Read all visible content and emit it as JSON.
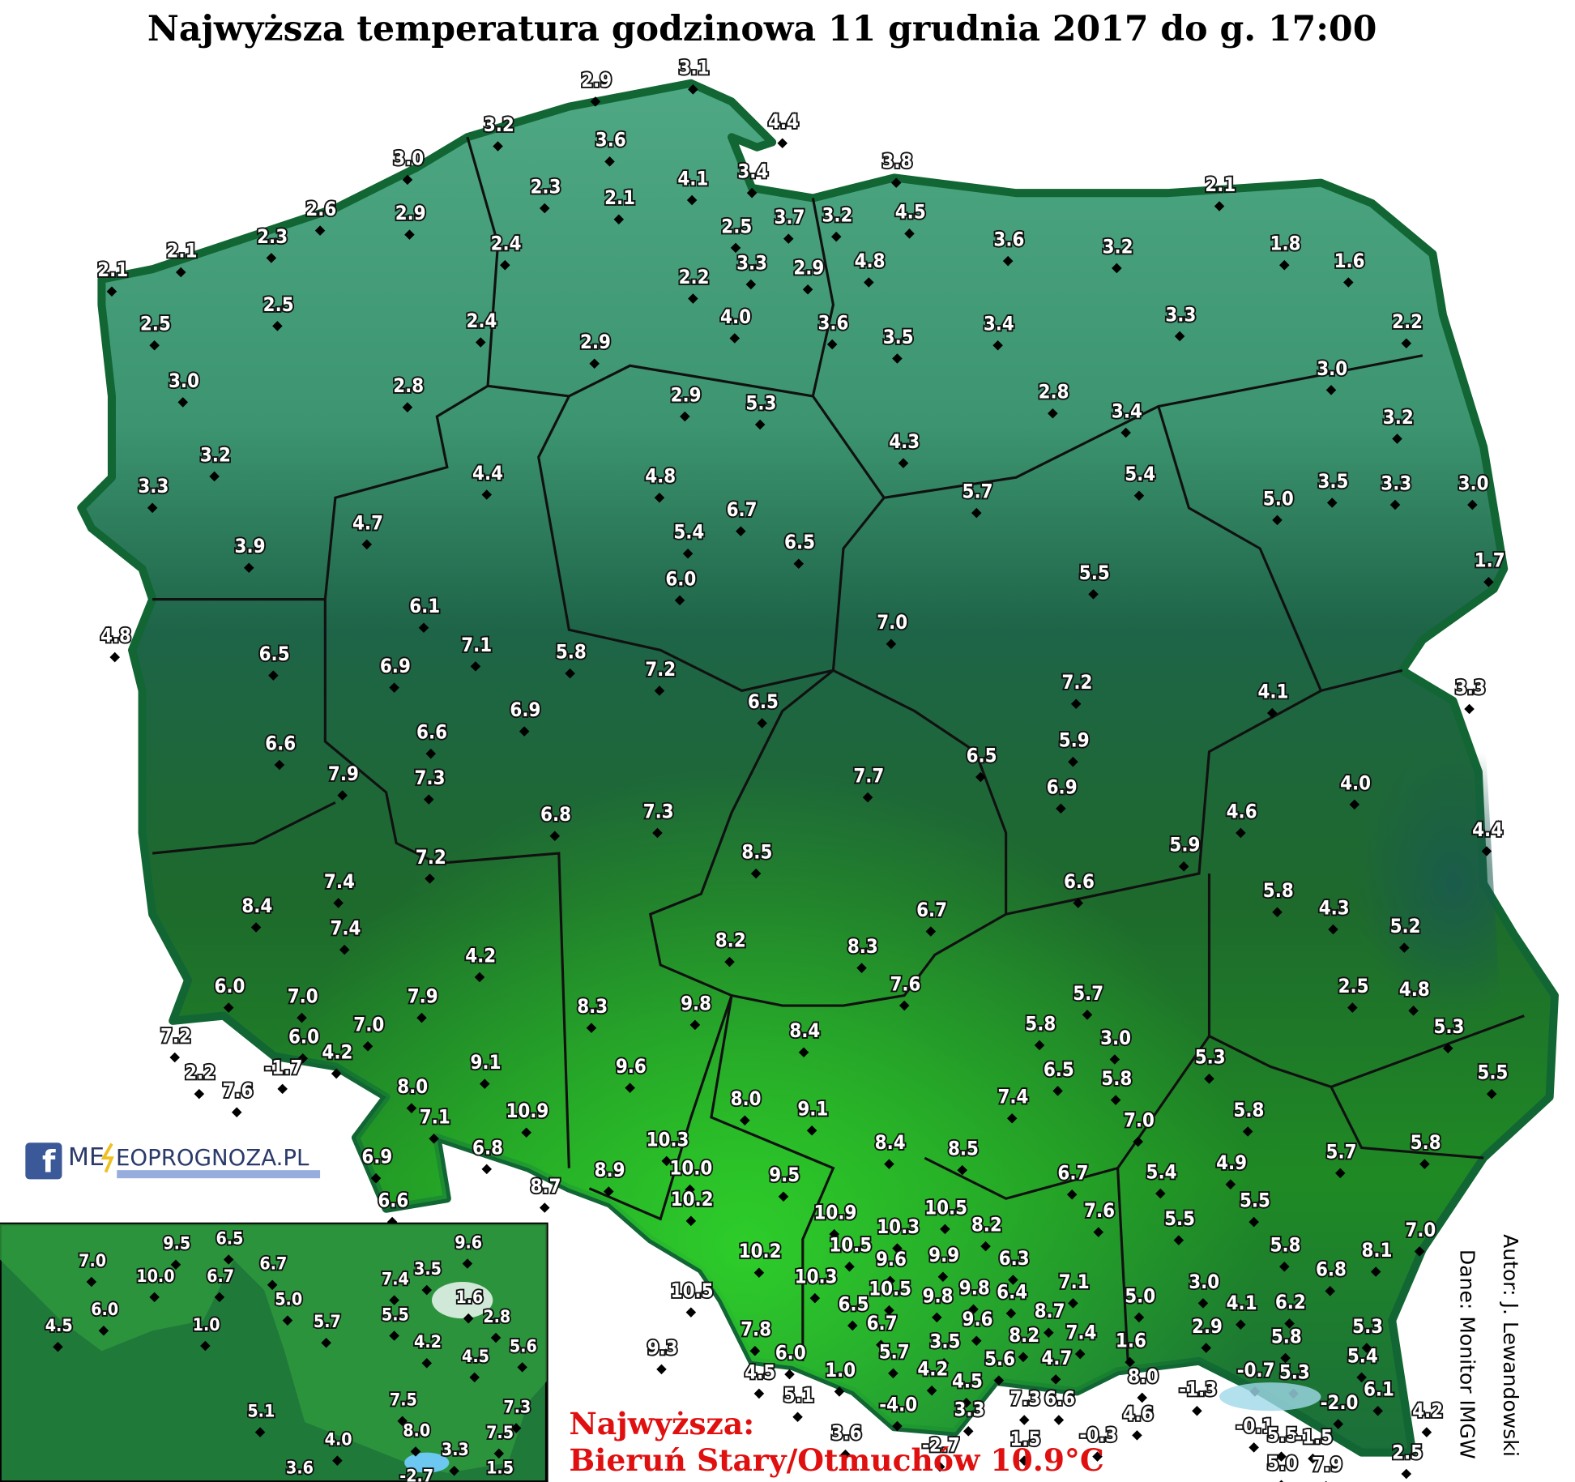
{
  "title": "Najwyższa temperatura godzinowa 11 grudnia 2017 do g. 17:00",
  "stations": [
    "2.9",
    "3.1",
    "4.4",
    "3.2",
    "3.6",
    "3.0",
    "3.4",
    "3.8",
    "4.1",
    "2.3",
    "2.1",
    "2.6",
    "2.9",
    "2.3",
    "2.5",
    "3.7",
    "3.2",
    "4.5",
    "2.1",
    "2.1",
    "2.1",
    "2.4",
    "3.6",
    "3.2",
    "1.8",
    "1.6",
    "3.3",
    "2.9",
    "4.8",
    "2.2",
    "2.5",
    "2.5",
    "2.4",
    "4.0",
    "3.6",
    "3.5",
    "3.4",
    "3.3",
    "2.2",
    "2.9",
    "3.0",
    "2.8",
    "2.9",
    "5.3",
    "2.8",
    "3.0",
    "3.4",
    "3.2",
    "4.3",
    "3.2",
    "4.4",
    "4.8",
    "5.4",
    "5.7",
    "3.3",
    "5.0",
    "3.5",
    "3.3",
    "3.0",
    "6.7",
    "5.4",
    "6.5",
    "4.7",
    "3.9",
    "1.7",
    "5.5",
    "6.0",
    "4.8",
    "6.1",
    "7.1",
    "5.8",
    "7.0",
    "6.5",
    "6.9",
    "7.2",
    "7.2",
    "4.1",
    "3.3",
    "6.9",
    "6.5",
    "6.6",
    "6.6",
    "6.5",
    "5.9",
    "4.0",
    "7.9",
    "7.3",
    "6.8",
    "7.3",
    "7.7",
    "6.9",
    "4.6",
    "4.4",
    "7.2",
    "8.5",
    "5.9",
    "7.4",
    "6.6",
    "5.8",
    "4.3",
    "8.4",
    "6.7",
    "5.2",
    "7.4",
    "8.2",
    "8.3",
    "4.2",
    "7.6",
    "2.5",
    "4.8",
    "6.0",
    "7.0",
    "7.9",
    "5.7",
    "9.8",
    "8.3",
    "5.8",
    "8.4",
    "3.0",
    "5.3",
    "7.2",
    "7.0",
    "6.0",
    "4.2",
    "9.1",
    "9.6",
    "5.3",
    "5.5",
    "2.2",
    "7.6",
    "-1.7",
    "6.5",
    "5.8",
    "8.0",
    "8.0",
    "9.1",
    "7.4",
    "5.8",
    "10.9",
    "7.1",
    "7.0",
    "6.9",
    "6.8",
    "10.3",
    "8.4",
    "8.5",
    "5.7",
    "5.8",
    "10.0",
    "6.7",
    "5.4",
    "4.9",
    "8.7",
    "8.9",
    "9.5",
    "6.6",
    "10.2",
    "5.5",
    "7.6",
    "10.9",
    "10.5",
    "10.3",
    "8.2",
    "5.5",
    "7.0",
    "10.2",
    "10.5",
    "9.6",
    "9.9",
    "6.3",
    "5.8",
    "8.1",
    "10.3",
    "7.1",
    "6.8",
    "10.5",
    "10.5",
    "9.8",
    "6.4",
    "9.8",
    "5.0",
    "3.0",
    "4.1",
    "6.2",
    "6.5",
    "8.7",
    "9.6",
    "6.7",
    "2.9",
    "5.8",
    "5.3",
    "9.3",
    "7.8",
    "7.4",
    "8.2",
    "1.6",
    "3.5",
    "5.7",
    "6.0",
    "4.7",
    "5.6",
    "5.4",
    "4.2",
    "4.5",
    "1.0",
    "4.5",
    "-0.7",
    "5.3",
    "8.0",
    "6.1",
    "-1.3",
    "5.1",
    "-4.0",
    "3.3",
    "7.3",
    "6.6",
    "4.6",
    "-2.0",
    "4.2",
    "3.6",
    "1.5",
    "-0.3",
    "-0.1",
    "5.5",
    "-1.5",
    "-2.7",
    "2.5",
    "5.0",
    "7.9"
  ],
  "inset": [
    "7.0",
    "9.5",
    "6.5",
    "9.6",
    "6.7",
    "10.0",
    "6.7",
    "7.4",
    "3.5",
    "6.0",
    "5.0",
    "1.6",
    "4.5",
    "1.0",
    "5.7",
    "5.5",
    "2.8",
    "4.2",
    "5.6",
    "4.5",
    "7.5",
    "7.3",
    "5.1",
    "8.0",
    "7.5",
    "4.0",
    "3.3",
    "3.6",
    "-2.7",
    "1.5"
  ],
  "logo": {
    "left": "ME",
    "right": "EOPROGNOZA.PL"
  },
  "highlight": {
    "label": "Najwyższa:",
    "text": "Bieruń Stary/Otmuchów 10.9°C"
  },
  "credits": {
    "author": "Autor: J. Lewandowski",
    "data": "Dane: Monitor IMGW"
  }
}
